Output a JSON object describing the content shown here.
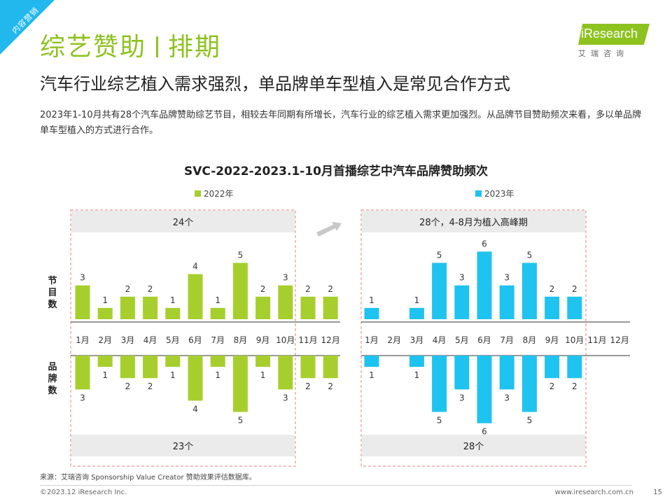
{
  "header": {
    "corner_tag": "内容营销",
    "title_left": "综艺赞助",
    "title_right": "排期",
    "subtitle": "汽车行业综艺植入需求强烈，单品牌单车型植入是常见合作方式",
    "description": "2023年1-10月共有28个汽车品牌赞助综艺节目，相较去年同期有所增长，汽车行业的综艺植入需求更加强烈。从品牌节目赞助频次来看，多以单品牌单车型植入的方式进行合作。"
  },
  "logo": {
    "text": "iResearch",
    "sub": "艾瑞咨询"
  },
  "chart_data": {
    "type": "bar",
    "title": "SVC-2022-2023.1-10月首播综艺中汽车品牌赞助频次",
    "categories": [
      "1月",
      "2月",
      "3月",
      "4月",
      "5月",
      "6月",
      "7月",
      "8月",
      "9月",
      "10月",
      "11月",
      "12月"
    ],
    "row_labels": {
      "programs": "节目数",
      "brands": "品牌数"
    },
    "arrow_label": "",
    "series": [
      {
        "name": "2022年",
        "color": "#a6cf2d",
        "programs": [
          3,
          1,
          2,
          2,
          1,
          4,
          1,
          5,
          2,
          3,
          2,
          2
        ],
        "brands": [
          3,
          1,
          2,
          2,
          1,
          4,
          1,
          5,
          1,
          3,
          2,
          2
        ],
        "programs_total": "24个",
        "brands_total": "23个"
      },
      {
        "name": "2023年",
        "color": "#1fc3f0",
        "programs": [
          1,
          null,
          1,
          5,
          3,
          6,
          3,
          5,
          2,
          2,
          null,
          null
        ],
        "brands": [
          1,
          null,
          1,
          5,
          3,
          6,
          3,
          5,
          2,
          2,
          null,
          null
        ],
        "programs_total": "28个，4-8月为植入高峰期",
        "brands_total": "28个"
      }
    ]
  },
  "footer": {
    "source": "来源：艾瑞咨询 Sponsorship Value Creator 赞助效果评估数据库。",
    "copyright": "©2023.12 iResearch Inc.",
    "website": "www.iresearch.com.cn",
    "page": "15"
  }
}
